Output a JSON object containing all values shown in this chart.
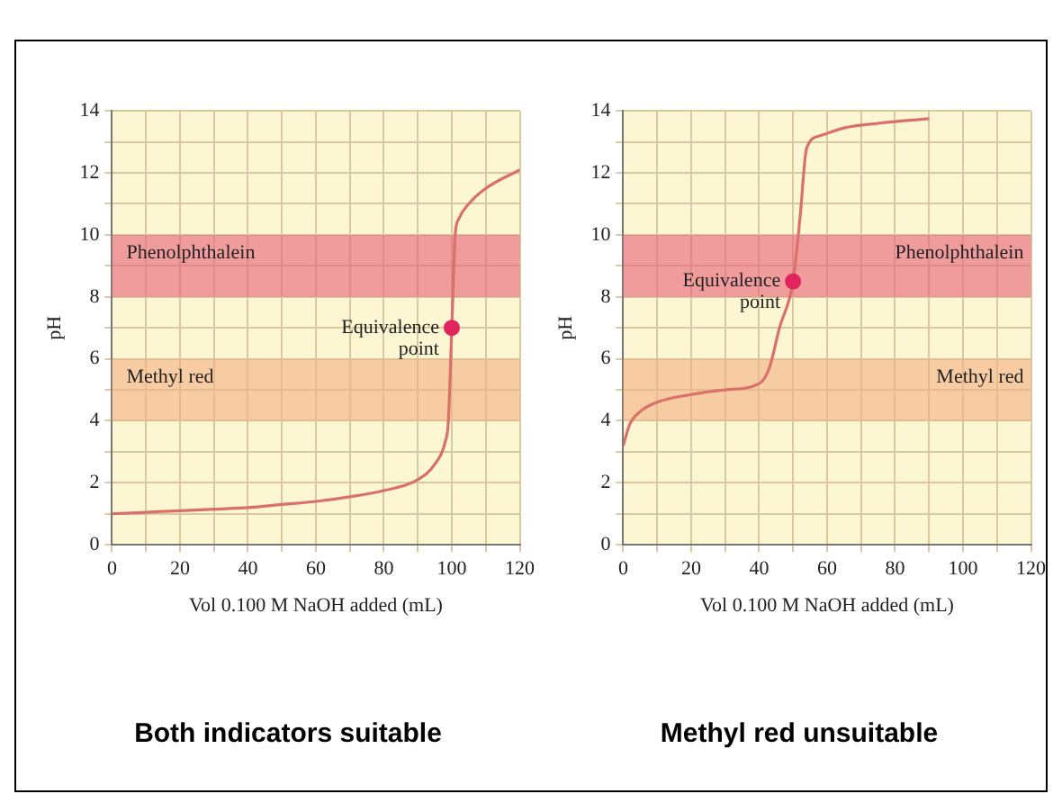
{
  "chart_data": [
    {
      "type": "line",
      "xlabel": "Vol 0.100 M NaOH added (mL)",
      "ylabel": "pH",
      "xlim": [
        0,
        120
      ],
      "ylim": [
        0,
        14
      ],
      "xticks": [
        0,
        {
          "value": 10,
          "label": null
        },
        20,
        {
          "value": 30,
          "label": null
        },
        40,
        {
          "value": 50,
          "label": null
        },
        60,
        {
          "value": 70,
          "label": null
        },
        80,
        {
          "value": 90,
          "label": null
        },
        100,
        {
          "value": 110,
          "label": null
        },
        120
      ],
      "yticks": [
        0,
        {
          "value": 1,
          "label": null
        },
        2,
        {
          "value": 3,
          "label": null
        },
        4,
        {
          "value": 5,
          "label": null
        },
        6,
        {
          "value": 7,
          "label": null
        },
        8,
        {
          "value": 9,
          "label": null
        },
        10,
        {
          "value": 11,
          "label": null
        },
        12,
        {
          "value": 13,
          "label": null
        },
        14
      ],
      "grid": true,
      "legend": false,
      "series": [
        {
          "type": "line",
          "marker": "none",
          "color": "#d9706a",
          "x": [
            0,
            10,
            20,
            30,
            40,
            50,
            60,
            70,
            80,
            90,
            95,
            98,
            99,
            100,
            101,
            102,
            105,
            110,
            120
          ],
          "values": [
            1.0,
            1.05,
            1.1,
            1.15,
            1.2,
            1.3,
            1.4,
            1.55,
            1.75,
            2.1,
            2.6,
            3.3,
            4.0,
            7.0,
            10.0,
            10.5,
            11.0,
            11.5,
            12.1
          ]
        },
        {
          "type": "scatter",
          "marker": "circle",
          "color": "#e0245e",
          "x": [
            100
          ],
          "values": [
            7
          ]
        }
      ],
      "bands": [
        {
          "axis": "y",
          "from": 8,
          "to": 10,
          "label": "Phenolphthalein",
          "color": "#e8607a"
        },
        {
          "axis": "y",
          "from": 4,
          "to": 6,
          "label": "Methyl red",
          "color": "#f4b183"
        }
      ],
      "annotations": [
        {
          "text": "Equivalence point",
          "x": 100,
          "y": 7
        },
        "Both indicators suitable"
      ]
    },
    {
      "type": "line",
      "xlabel": "Vol 0.100 M NaOH added (mL)",
      "ylabel": "pH",
      "xlim": [
        0,
        120
      ],
      "ylim": [
        0,
        14
      ],
      "xticks": [
        0,
        {
          "value": 10,
          "label": null
        },
        20,
        {
          "value": 30,
          "label": null
        },
        40,
        {
          "value": 50,
          "label": null
        },
        60,
        {
          "value": 70,
          "label": null
        },
        80,
        {
          "value": 90,
          "label": null
        },
        100,
        {
          "value": 110,
          "label": null
        },
        120
      ],
      "yticks": [
        0,
        {
          "value": 1,
          "label": null
        },
        2,
        {
          "value": 3,
          "label": null
        },
        4,
        {
          "value": 5,
          "label": null
        },
        6,
        {
          "value": 7,
          "label": null
        },
        8,
        {
          "value": 9,
          "label": null
        },
        10,
        {
          "value": 11,
          "label": null
        },
        12,
        {
          "value": 13,
          "label": null
        },
        14
      ],
      "grid": true,
      "legend": false,
      "series": [
        {
          "type": "line",
          "marker": "none",
          "color": "#d9706a",
          "x": [
            0,
            2,
            5,
            10,
            20,
            30,
            40,
            43,
            46,
            50,
            52,
            54,
            58,
            65,
            75,
            90
          ],
          "values": [
            3.2,
            3.9,
            4.3,
            4.6,
            4.85,
            5.0,
            5.2,
            5.7,
            7.0,
            8.5,
            10.5,
            12.8,
            13.2,
            13.45,
            13.6,
            13.75
          ]
        },
        {
          "type": "scatter",
          "marker": "circle",
          "color": "#e0245e",
          "x": [
            50
          ],
          "values": [
            8.5
          ]
        }
      ],
      "bands": [
        {
          "axis": "y",
          "from": 8,
          "to": 10,
          "label": "Phenolphthalein",
          "color": "#e8607a"
        },
        {
          "axis": "y",
          "from": 4,
          "to": 6,
          "label": "Methyl red",
          "color": "#f4b183"
        }
      ],
      "annotations": [
        {
          "text": "Equivalence point",
          "x": 50,
          "y": 8.5
        },
        "Methyl red unsuitable"
      ]
    }
  ]
}
